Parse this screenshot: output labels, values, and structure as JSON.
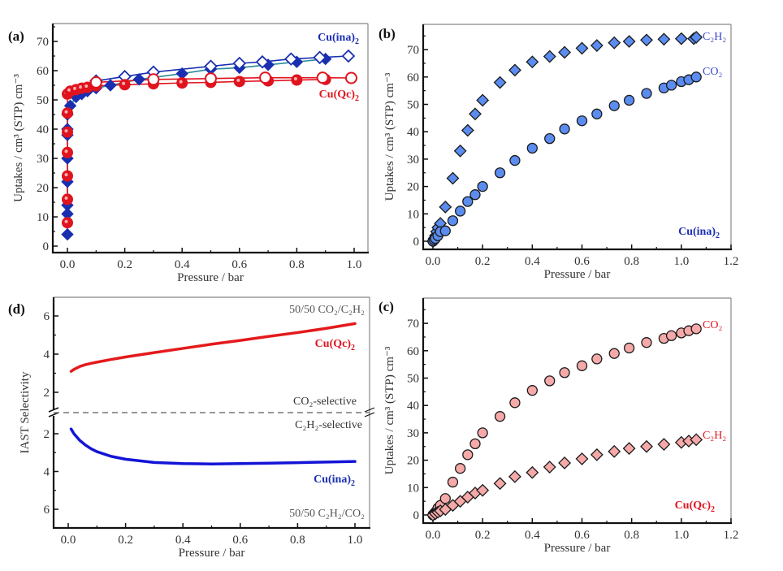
{
  "chart_data": [
    {
      "id": "a",
      "type": "line",
      "panel_label": "(a)",
      "title": "",
      "xlabel": "Pressure / bar",
      "ylabel": "Uptakes / cm³ (STP) cm⁻³",
      "xlim": [
        -0.05,
        1.02
      ],
      "ylim": [
        -2,
        75
      ],
      "xticks": [
        "0.0",
        "0.2",
        "0.4",
        "0.6",
        "0.8",
        "1.0"
      ],
      "xtick_values": [
        0,
        0.2,
        0.4,
        0.6,
        0.8,
        1.0
      ],
      "yticks": [
        "0",
        "10",
        "20",
        "30",
        "40",
        "50",
        "60",
        "70"
      ],
      "ytick_values": [
        0,
        10,
        20,
        30,
        40,
        50,
        60,
        70
      ],
      "annotations": [
        {
          "text": "Cu(ina)",
          "sub": "2",
          "color": "#1a2fb0",
          "position": "top-right"
        },
        {
          "text": "Cu(Qc)",
          "sub": "2",
          "color": "#e0141e",
          "position": "right-middle"
        }
      ],
      "series": [
        {
          "name": "Cu(ina)2 adsorption",
          "marker": "diamond-filled",
          "color": "#1a2fb0",
          "x": [
            0.0,
            0.0,
            0.0,
            0.0,
            0.0,
            0.0,
            0.0,
            0.0,
            0.01,
            0.03,
            0.05,
            0.07,
            0.1,
            0.15,
            0.25,
            0.4,
            0.5,
            0.6,
            0.7,
            0.8,
            0.9
          ],
          "y": [
            4,
            11,
            14,
            22,
            30,
            38,
            40,
            45,
            48,
            51,
            52,
            53,
            54,
            55,
            57,
            59,
            60.5,
            61,
            62,
            63,
            64
          ]
        },
        {
          "name": "Cu(ina)2 desorption",
          "marker": "diamond-open",
          "color": "#1a2fb0",
          "x": [
            0.1,
            0.2,
            0.3,
            0.5,
            0.6,
            0.68,
            0.78,
            0.88,
            0.98
          ],
          "y": [
            56.5,
            58,
            59.5,
            61.5,
            62.5,
            63,
            64,
            64.5,
            65
          ]
        },
        {
          "name": "Cu(Qc)2 adsorption",
          "marker": "circle-filled",
          "color": "#e0141e",
          "x": [
            0.0,
            0.0,
            0.0,
            0.0,
            0.0,
            0.0,
            0.0,
            0.01,
            0.03,
            0.05,
            0.07,
            0.1,
            0.2,
            0.3,
            0.4,
            0.5,
            0.6,
            0.7,
            0.8,
            0.9
          ],
          "y": [
            8,
            16,
            24,
            32,
            39,
            45.5,
            52,
            53,
            53.5,
            54,
            54.3,
            54.8,
            55.2,
            55.5,
            55.8,
            56,
            56.3,
            56.5,
            56.8,
            57
          ]
        },
        {
          "name": "Cu(Qc)2 desorption",
          "marker": "circle-open",
          "color": "#e0141e",
          "x": [
            0.1,
            0.3,
            0.5,
            0.69,
            0.89,
            0.99
          ],
          "y": [
            56,
            57,
            57.3,
            57.6,
            57.6,
            57.5
          ]
        }
      ]
    },
    {
      "id": "b",
      "type": "scatter",
      "panel_label": "(b)",
      "title": "",
      "xlabel": "Pressure / bar",
      "ylabel": "Uptakes / cm³ (STP) cm⁻³",
      "xlim": [
        -0.035,
        1.2
      ],
      "ylim": [
        -3,
        79
      ],
      "xticks": [
        "0.0",
        "0.2",
        "0.4",
        "0.6",
        "0.8",
        "1.0",
        "1.2"
      ],
      "xtick_values": [
        0,
        0.2,
        0.4,
        0.6,
        0.8,
        1.0,
        1.2
      ],
      "yticks": [
        "0",
        "10",
        "20",
        "30",
        "40",
        "50",
        "60",
        "70"
      ],
      "ytick_values": [
        0,
        10,
        20,
        30,
        40,
        50,
        60,
        70
      ],
      "annotations": [
        {
          "text": "C₂H₂",
          "color": "#3a48c8",
          "position": "top-right"
        },
        {
          "text": "CO₂",
          "color": "#3a48c8",
          "position": "right-upper"
        },
        {
          "text": "Cu(ina)",
          "sub": "2",
          "color": "#1a2fb0",
          "position": "bottom-right",
          "bold": true
        }
      ],
      "series": [
        {
          "name": "C2H2",
          "marker": "diamond",
          "fill": "#5b8cf0",
          "x": [
            0.0,
            0.005,
            0.01,
            0.015,
            0.02,
            0.03,
            0.05,
            0.08,
            0.11,
            0.14,
            0.17,
            0.2,
            0.27,
            0.33,
            0.4,
            0.47,
            0.53,
            0.6,
            0.66,
            0.73,
            0.79,
            0.86,
            0.93,
            1.0,
            1.05,
            1.06
          ],
          "y": [
            0,
            1,
            2,
            3.5,
            5,
            6.5,
            12.5,
            23,
            33,
            40.5,
            46.5,
            51.5,
            58,
            62.5,
            65.5,
            67.5,
            69,
            70.5,
            71.5,
            72.5,
            73,
            73.5,
            73.8,
            74,
            74,
            74.5
          ]
        },
        {
          "name": "CO2",
          "marker": "circle",
          "fill": "#5b8cf0",
          "x": [
            0.0,
            0.005,
            0.01,
            0.02,
            0.03,
            0.05,
            0.08,
            0.11,
            0.14,
            0.17,
            0.2,
            0.27,
            0.33,
            0.4,
            0.47,
            0.53,
            0.6,
            0.66,
            0.73,
            0.79,
            0.86,
            0.93,
            0.96,
            1.0,
            1.03,
            1.06
          ],
          "y": [
            0,
            0.5,
            1,
            2,
            3.5,
            3.8,
            7.5,
            11,
            14.5,
            17,
            20,
            25,
            29.5,
            34,
            37.5,
            41,
            44,
            46.5,
            49.5,
            51.5,
            54,
            56,
            57,
            58.3,
            59,
            60
          ]
        }
      ]
    },
    {
      "id": "c",
      "type": "scatter",
      "panel_label": "(c)",
      "title": "",
      "xlabel": "Pressure / bar",
      "ylabel": "Uptakes / cm³ (STP) cm⁻³",
      "xlim": [
        -0.035,
        1.2
      ],
      "ylim": [
        -3,
        79
      ],
      "xticks": [
        "0.0",
        "0.2",
        "0.4",
        "0.6",
        "0.8",
        "1.0",
        "1.2"
      ],
      "xtick_values": [
        0,
        0.2,
        0.4,
        0.6,
        0.8,
        1.0,
        1.2
      ],
      "yticks": [
        "0",
        "10",
        "20",
        "30",
        "40",
        "50",
        "60",
        "70"
      ],
      "ytick_values": [
        0,
        10,
        20,
        30,
        40,
        50,
        60,
        70
      ],
      "annotations": [
        {
          "text": "CO₂",
          "color": "#e0141e",
          "position": "top-right"
        },
        {
          "text": "C₂H₂",
          "color": "#e0141e",
          "position": "right-middle"
        },
        {
          "text": "Cu(Qc)",
          "sub": "2",
          "color": "#e0141e",
          "position": "bottom-right",
          "bold": true
        }
      ],
      "series": [
        {
          "name": "CO2",
          "marker": "circle",
          "fill": "#f5a9a9",
          "x": [
            0.0,
            0.005,
            0.01,
            0.015,
            0.02,
            0.03,
            0.05,
            0.08,
            0.11,
            0.14,
            0.17,
            0.2,
            0.27,
            0.33,
            0.4,
            0.47,
            0.53,
            0.6,
            0.66,
            0.73,
            0.79,
            0.86,
            0.93,
            0.96,
            1.0,
            1.03,
            1.06
          ],
          "y": [
            0,
            0.5,
            1,
            1.5,
            2.5,
            3.5,
            6,
            12,
            17,
            22,
            26,
            30,
            36,
            41,
            45.5,
            49,
            52,
            54.5,
            57,
            59,
            61,
            63,
            64.5,
            65.5,
            66.5,
            67.3,
            68
          ]
        },
        {
          "name": "C2H2",
          "marker": "diamond",
          "fill": "#f5a9a9",
          "x": [
            0.0,
            0.01,
            0.02,
            0.03,
            0.05,
            0.08,
            0.11,
            0.14,
            0.17,
            0.2,
            0.27,
            0.33,
            0.4,
            0.47,
            0.53,
            0.6,
            0.66,
            0.73,
            0.79,
            0.86,
            0.93,
            1.0,
            1.03,
            1.06
          ],
          "y": [
            0,
            0.5,
            1,
            1.5,
            2,
            3.5,
            5,
            6.5,
            8,
            9,
            11.5,
            14,
            15.5,
            17.5,
            19,
            20.5,
            22,
            23.2,
            24.3,
            25,
            25.8,
            26.5,
            27,
            27.5
          ]
        }
      ]
    },
    {
      "id": "d",
      "type": "line",
      "panel_label": "(d)",
      "title": "",
      "xlabel": "Pressure / bar",
      "ylabel": "IAST Selectivity",
      "xlim": [
        -0.05,
        1.03
      ],
      "upper_ylim": [
        1,
        7
      ],
      "lower_ylim": [
        1,
        7
      ],
      "xticks": [
        "0.0",
        "0.2",
        "0.4",
        "0.6",
        "0.8",
        "1.0"
      ],
      "xtick_values": [
        0,
        0.2,
        0.4,
        0.6,
        0.8,
        1.0
      ],
      "upper_yticks": [
        "2",
        "4",
        "6"
      ],
      "upper_ytick_values": [
        2,
        4,
        6
      ],
      "lower_yticks": [
        "2",
        "4",
        "6"
      ],
      "lower_ytick_values": [
        2,
        4,
        6
      ],
      "axis_break": true,
      "annotations": [
        {
          "text": "50/50 CO₂/C₂H₂",
          "color": "#555555",
          "position": "top-right"
        },
        {
          "text": "Cu(Qc)",
          "sub": "2",
          "color": "#e0141e",
          "position": "upper-right",
          "bold": true
        },
        {
          "text": "CO₂-selective",
          "color": "#333333",
          "position": "above-break"
        },
        {
          "text": "C₂H₂-selective",
          "color": "#333333",
          "position": "below-break"
        },
        {
          "text": "Cu(ina)",
          "sub": "2",
          "color": "#1a2fb0",
          "position": "lower-right",
          "bold": true
        },
        {
          "text": "50/50 C₂H₂/CO₂",
          "color": "#555555",
          "position": "bottom-right"
        }
      ],
      "series": [
        {
          "name": "Cu(Qc)2 (CO2/C2H2, upper axis)",
          "color": "#e41a1c",
          "region": "upper",
          "x": [
            0.01,
            0.02,
            0.04,
            0.06,
            0.08,
            0.1,
            0.15,
            0.2,
            0.3,
            0.4,
            0.5,
            0.6,
            0.7,
            0.8,
            0.9,
            1.0
          ],
          "y": [
            3.1,
            3.2,
            3.35,
            3.45,
            3.52,
            3.58,
            3.72,
            3.85,
            4.08,
            4.3,
            4.52,
            4.72,
            4.93,
            5.13,
            5.35,
            5.6
          ]
        },
        {
          "name": "Cu(ina)2 (C2H2/CO2, lower axis)",
          "color": "#1414d6",
          "region": "lower",
          "x": [
            0.01,
            0.02,
            0.04,
            0.06,
            0.08,
            0.1,
            0.15,
            0.2,
            0.3,
            0.4,
            0.5,
            0.6,
            0.7,
            0.8,
            0.9,
            1.0
          ],
          "y": [
            1.75,
            2.0,
            2.35,
            2.6,
            2.8,
            2.95,
            3.2,
            3.35,
            3.52,
            3.58,
            3.6,
            3.58,
            3.56,
            3.53,
            3.5,
            3.47
          ]
        }
      ]
    }
  ]
}
